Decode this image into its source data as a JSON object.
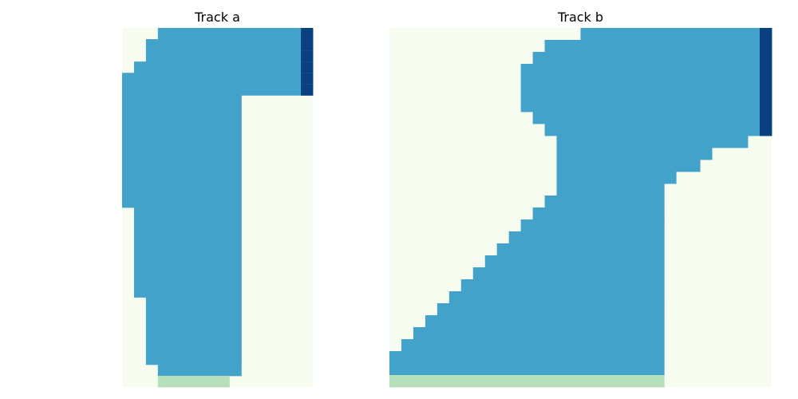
{
  "chart_data": [
    {
      "type": "heatmap",
      "title": "Track a",
      "n_cols": 16,
      "n_rows": 32,
      "colors": {
        "background": "#f7fcf0",
        "track": "#43a2ca",
        "end_marker": "#084081",
        "start_line": "#b5e0b9"
      },
      "rows": [
        {
          "row": 0,
          "track_from": 3,
          "track_to": 15,
          "end_marker_col": 15
        },
        {
          "row": 1,
          "track_from": 2,
          "track_to": 15,
          "end_marker_col": 15
        },
        {
          "row": 2,
          "track_from": 2,
          "track_to": 15,
          "end_marker_col": 15
        },
        {
          "row": 3,
          "track_from": 1,
          "track_to": 15,
          "end_marker_col": 15
        },
        {
          "row": 4,
          "track_from": 0,
          "track_to": 15,
          "end_marker_col": 15
        },
        {
          "row": 5,
          "track_from": 0,
          "track_to": 15,
          "end_marker_col": 15
        },
        {
          "row": 6,
          "track_from": 0,
          "track_to": 9
        },
        {
          "row": 7,
          "track_from": 0,
          "track_to": 9
        },
        {
          "row": 8,
          "track_from": 0,
          "track_to": 9
        },
        {
          "row": 9,
          "track_from": 0,
          "track_to": 9
        },
        {
          "row": 10,
          "track_from": 0,
          "track_to": 9
        },
        {
          "row": 11,
          "track_from": 0,
          "track_to": 9
        },
        {
          "row": 12,
          "track_from": 0,
          "track_to": 9
        },
        {
          "row": 13,
          "track_from": 0,
          "track_to": 9
        },
        {
          "row": 14,
          "track_from": 0,
          "track_to": 9
        },
        {
          "row": 15,
          "track_from": 0,
          "track_to": 9
        },
        {
          "row": 16,
          "track_from": 1,
          "track_to": 9
        },
        {
          "row": 17,
          "track_from": 1,
          "track_to": 9
        },
        {
          "row": 18,
          "track_from": 1,
          "track_to": 9
        },
        {
          "row": 19,
          "track_from": 1,
          "track_to": 9
        },
        {
          "row": 20,
          "track_from": 1,
          "track_to": 9
        },
        {
          "row": 21,
          "track_from": 1,
          "track_to": 9
        },
        {
          "row": 22,
          "track_from": 1,
          "track_to": 9
        },
        {
          "row": 23,
          "track_from": 1,
          "track_to": 9
        },
        {
          "row": 24,
          "track_from": 2,
          "track_to": 9
        },
        {
          "row": 25,
          "track_from": 2,
          "track_to": 9
        },
        {
          "row": 26,
          "track_from": 2,
          "track_to": 9
        },
        {
          "row": 27,
          "track_from": 2,
          "track_to": 9
        },
        {
          "row": 28,
          "track_from": 2,
          "track_to": 9
        },
        {
          "row": 29,
          "track_from": 2,
          "track_to": 9
        },
        {
          "row": 30,
          "track_from": 3,
          "track_to": 9
        },
        {
          "row": 31,
          "start_line_from": 3,
          "start_line_to": 8
        }
      ]
    },
    {
      "type": "heatmap",
      "title": "Track b",
      "n_cols": 32,
      "n_rows": 30,
      "colors": {
        "background": "#f7fcf0",
        "track": "#43a2ca",
        "end_marker": "#084081",
        "start_line": "#b5e0b9"
      },
      "rows": [
        {
          "row": 0,
          "track_from": 16,
          "track_to": 31,
          "end_marker_col": 31
        },
        {
          "row": 1,
          "track_from": 13,
          "track_to": 31,
          "end_marker_col": 31
        },
        {
          "row": 2,
          "track_from": 12,
          "track_to": 31,
          "end_marker_col": 31
        },
        {
          "row": 3,
          "track_from": 11,
          "track_to": 31,
          "end_marker_col": 31
        },
        {
          "row": 4,
          "track_from": 11,
          "track_to": 31,
          "end_marker_col": 31
        },
        {
          "row": 5,
          "track_from": 11,
          "track_to": 31,
          "end_marker_col": 31
        },
        {
          "row": 6,
          "track_from": 11,
          "track_to": 31,
          "end_marker_col": 31
        },
        {
          "row": 7,
          "track_from": 12,
          "track_to": 31,
          "end_marker_col": 31
        },
        {
          "row": 8,
          "track_from": 13,
          "track_to": 31,
          "end_marker_col": 31
        },
        {
          "row": 9,
          "track_from": 14,
          "track_to": 29
        },
        {
          "row": 10,
          "track_from": 14,
          "track_to": 26
        },
        {
          "row": 11,
          "track_from": 14,
          "track_to": 25
        },
        {
          "row": 12,
          "track_from": 14,
          "track_to": 23
        },
        {
          "row": 13,
          "track_from": 14,
          "track_to": 22
        },
        {
          "row": 14,
          "track_from": 13,
          "track_to": 22
        },
        {
          "row": 15,
          "track_from": 12,
          "track_to": 22
        },
        {
          "row": 16,
          "track_from": 11,
          "track_to": 22
        },
        {
          "row": 17,
          "track_from": 10,
          "track_to": 22
        },
        {
          "row": 18,
          "track_from": 9,
          "track_to": 22
        },
        {
          "row": 19,
          "track_from": 8,
          "track_to": 22
        },
        {
          "row": 20,
          "track_from": 7,
          "track_to": 22
        },
        {
          "row": 21,
          "track_from": 6,
          "track_to": 22
        },
        {
          "row": 22,
          "track_from": 5,
          "track_to": 22
        },
        {
          "row": 23,
          "track_from": 4,
          "track_to": 22
        },
        {
          "row": 24,
          "track_from": 3,
          "track_to": 22
        },
        {
          "row": 25,
          "track_from": 2,
          "track_to": 22
        },
        {
          "row": 26,
          "track_from": 1,
          "track_to": 22
        },
        {
          "row": 27,
          "track_from": 0,
          "track_to": 22
        },
        {
          "row": 28,
          "track_from": 0,
          "track_to": 22
        },
        {
          "row": 29,
          "start_line_from": 0,
          "start_line_to": 22
        }
      ]
    }
  ]
}
